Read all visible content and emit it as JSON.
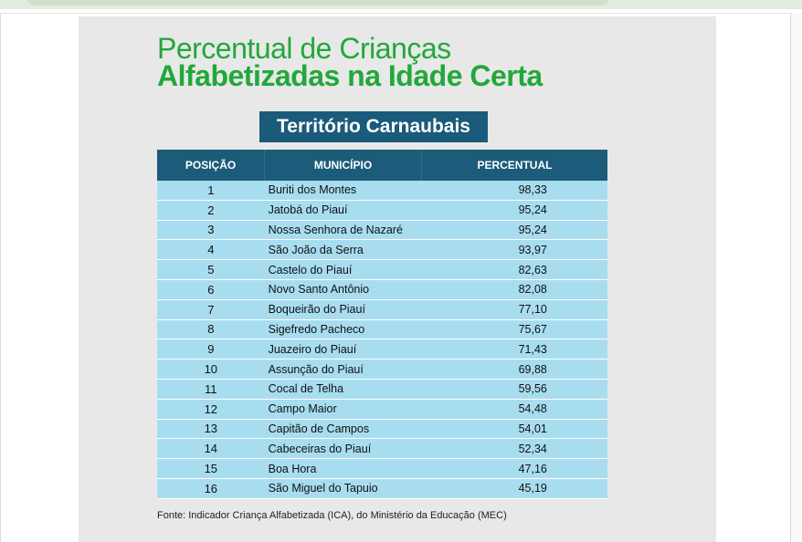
{
  "title_line1": "Percentual de Crianças",
  "title_line2": "Alfabetizadas na Idade Certa",
  "subtitle": "Território Carnaubais",
  "table": {
    "headers": [
      "POSIÇÃO",
      "MUNICÍPIO",
      "PERCENTUAL"
    ],
    "rows": [
      {
        "pos": "1",
        "municipio": "Buriti dos Montes",
        "pct": "98,33"
      },
      {
        "pos": "2",
        "municipio": "Jatobá do Piauí",
        "pct": "95,24"
      },
      {
        "pos": "3",
        "municipio": "Nossa Senhora de Nazaré",
        "pct": "95,24"
      },
      {
        "pos": "4",
        "municipio": "São João da Serra",
        "pct": "93,97"
      },
      {
        "pos": "5",
        "municipio": "Castelo do Piauí",
        "pct": "82,63"
      },
      {
        "pos": "6",
        "municipio": "Novo Santo Antônio",
        "pct": "82,08"
      },
      {
        "pos": "7",
        "municipio": "Boqueirão do Piauí",
        "pct": "77,10"
      },
      {
        "pos": "8",
        "municipio": "Sigefredo Pacheco",
        "pct": "75,67"
      },
      {
        "pos": "9",
        "municipio": "Juazeiro do Piauí",
        "pct": "71,43"
      },
      {
        "pos": "10",
        "municipio": "Assunção do Piauí",
        "pct": "69,88"
      },
      {
        "pos": "11",
        "municipio": "Cocal de Telha",
        "pct": "59,56"
      },
      {
        "pos": "12",
        "municipio": "Campo Maior",
        "pct": "54,48"
      },
      {
        "pos": "13",
        "municipio": "Capitão de Campos",
        "pct": "54,01"
      },
      {
        "pos": "14",
        "municipio": "Cabeceiras do Piauí",
        "pct": "52,34"
      },
      {
        "pos": "15",
        "municipio": "Boa Hora",
        "pct": "47,16"
      },
      {
        "pos": "16",
        "municipio": "São Miguel do Tapuio",
        "pct": "45,19"
      }
    ]
  },
  "source": "Fonte: Indicador Criança Alfabetizada (ICA), do Ministério da Educação (MEC)",
  "colors": {
    "title_green": "#22a83a",
    "header_blue": "#1c5b79",
    "row_blue": "#a8ddf0",
    "card_bg": "#e8e8e8"
  }
}
